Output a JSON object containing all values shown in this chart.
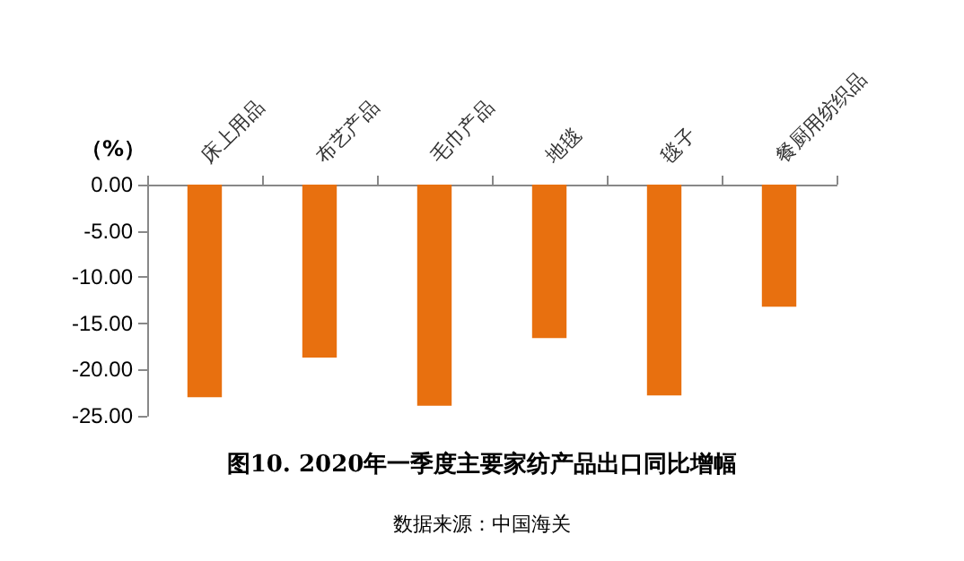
{
  "chart_data": {
    "type": "bar",
    "title": "图10. 2020年一季度主要家纺产品出口同比增幅",
    "ylabel": "（%）",
    "annotations": [
      "数据来源：中国海关"
    ],
    "categories": [
      "床上用品",
      "布艺产品",
      "毛巾产品",
      "地毯",
      "毯子",
      "餐厨用纺织品"
    ],
    "values": [
      -23.0,
      -18.7,
      -23.9,
      -16.6,
      -22.8,
      -13.2
    ],
    "color": "#e8700f",
    "ylim": [
      -25,
      0
    ],
    "yticks": [
      {
        "value": 0,
        "label": "0.00"
      },
      {
        "value": -5,
        "label": "-5.00"
      },
      {
        "value": -10,
        "label": "-10.00"
      },
      {
        "value": -15,
        "label": "-15.00"
      },
      {
        "value": -20,
        "label": "-20.00"
      },
      {
        "value": -25,
        "label": "-25.00"
      }
    ],
    "grid": false
  }
}
